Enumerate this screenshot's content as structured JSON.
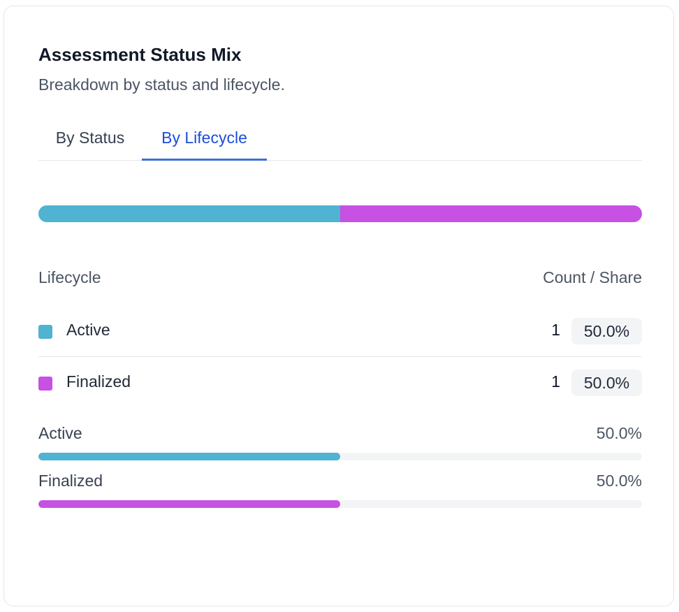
{
  "card": {
    "title": "Assessment Status Mix",
    "subtitle": "Breakdown by status and lifecycle."
  },
  "tabs": [
    {
      "label": "By Status",
      "active": false
    },
    {
      "label": "By Lifecycle",
      "active": true
    }
  ],
  "table": {
    "col_left": "Lifecycle",
    "col_right": "Count / Share"
  },
  "lifecycle": [
    {
      "label": "Active",
      "count": "1",
      "share": "50.0%",
      "fraction": 0.5,
      "color": "#4fb3d1"
    },
    {
      "label": "Finalized",
      "count": "1",
      "share": "50.0%",
      "fraction": 0.5,
      "color": "#c651e3"
    }
  ]
}
